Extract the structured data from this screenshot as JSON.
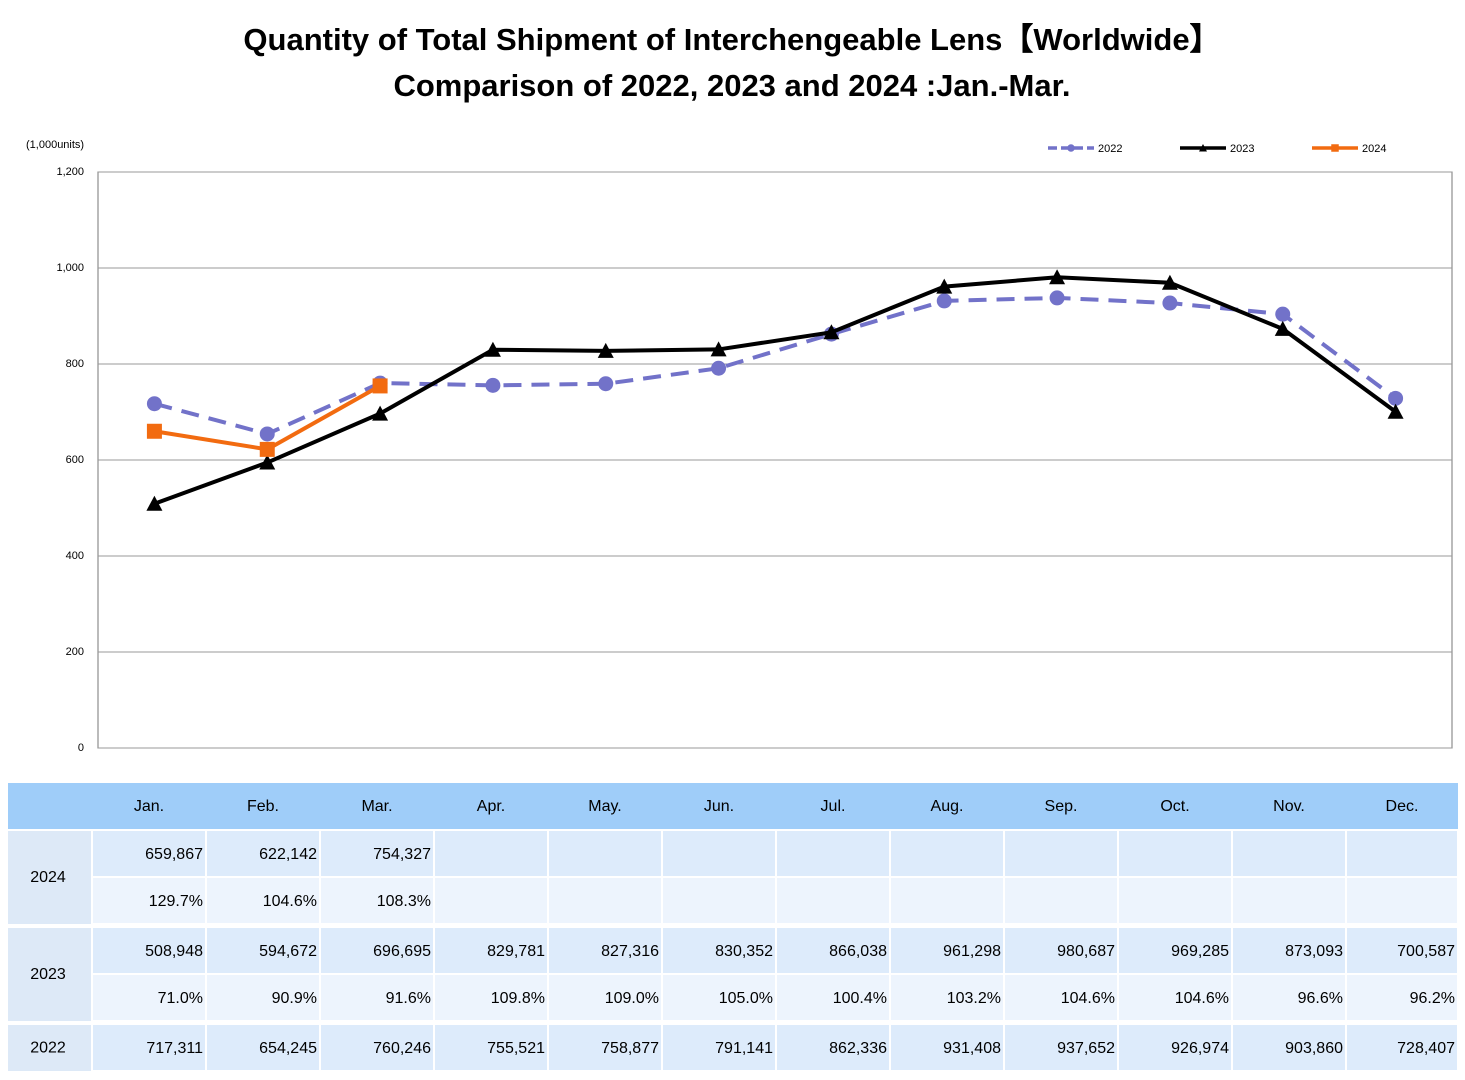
{
  "chart_data": {
    "type": "line",
    "title": "Quantity of Total Shipment of Interchengeable Lens【Worldwide】",
    "subtitle": "Comparison of 2022, 2023 and 2024 :Jan.-Mar.",
    "y_label": "(1,000units)",
    "ylim": [
      0,
      1200
    ],
    "yticks": [
      0,
      200,
      400,
      600,
      800,
      {
        "value": 1000,
        "label": "1,000"
      },
      {
        "value": 1200,
        "label": "1,200"
      }
    ],
    "grid": true,
    "legend": "top-right",
    "series": [
      {
        "name": "2022",
        "color": "#7272c9",
        "dashed": true,
        "marker": "circle",
        "values": [
          717.311,
          654.245,
          760.246,
          755.521,
          758.877,
          791.141,
          862.336,
          931.408,
          937.652,
          926.974,
          903.86,
          728.407
        ]
      },
      {
        "name": "2023",
        "color": "#000000",
        "dashed": false,
        "marker": "triangle",
        "values": [
          508.948,
          594.672,
          696.695,
          829.781,
          827.316,
          830.352,
          866.038,
          961.298,
          980.687,
          969.285,
          873.093,
          700.587
        ]
      },
      {
        "name": "2024",
        "color": "#f26b10",
        "dashed": false,
        "marker": "square",
        "values": [
          659.867,
          622.142,
          754.327
        ]
      }
    ]
  },
  "table": {
    "header": [
      "Jan.",
      "Feb.",
      "Mar.",
      "Apr.",
      "May.",
      "Jun.",
      "Jul.",
      "Aug.",
      "Sep.",
      "Oct.",
      "Nov.",
      "Dec."
    ],
    "rows": [
      {
        "label": "2024",
        "values": [
          "659,867",
          "622,142",
          "754,327"
        ],
        "ratios": [
          "129.7%",
          "104.6%",
          "108.3%"
        ]
      },
      {
        "label": "2023",
        "values": [
          "508,948",
          "594,672",
          "696,695",
          "829,781",
          "827,316",
          "830,352",
          "866,038",
          "961,298",
          "980,687",
          "969,285",
          "873,093",
          "700,587"
        ],
        "ratios": [
          "71.0%",
          "90.9%",
          "91.6%",
          "109.8%",
          "109.0%",
          "105.0%",
          "100.4%",
          "103.2%",
          "104.6%",
          "104.6%",
          "96.6%",
          "96.2%"
        ]
      },
      {
        "label": "2022",
        "values": [
          "717,311",
          "654,245",
          "760,246",
          "755,521",
          "758,877",
          "791,141",
          "862,336",
          "931,408",
          "937,652",
          "926,974",
          "903,860",
          "728,407"
        ]
      }
    ]
  }
}
